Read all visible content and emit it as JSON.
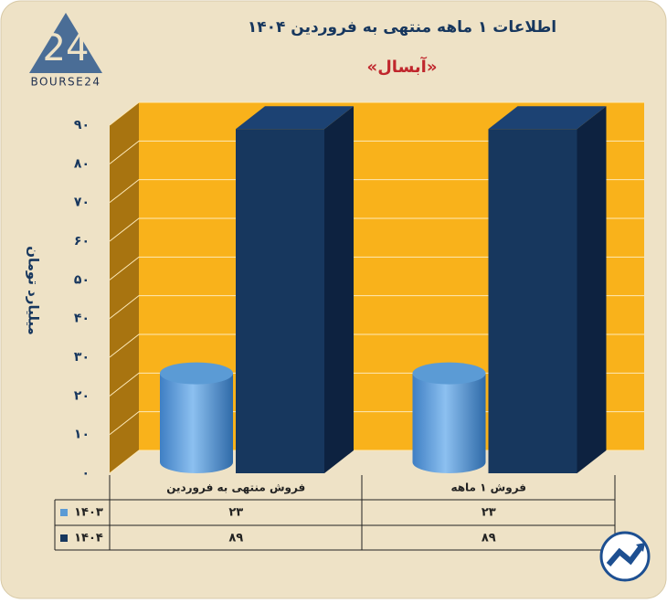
{
  "chart_data": {
    "type": "bar3d",
    "title": "اطلاعات ۱ ماهه منتهی به فروردین ۱۴۰۴",
    "subtitle": "«آبسال»",
    "y_label": "میلیارد تومان",
    "categories": [
      "فروش منتهی به  فروردین",
      "فروش ۱  ماهه"
    ],
    "series": [
      {
        "name": "۱۴۰۳",
        "color": "#5b9bd5",
        "shape": "cylinder",
        "values": [
          23,
          23
        ],
        "value_labels": [
          "۲۳",
          "۲۳"
        ]
      },
      {
        "name": "۱۴۰۴",
        "color": "#17375e",
        "shape": "box",
        "values": [
          89,
          89
        ],
        "value_labels": [
          "۸۹",
          "۸۹"
        ]
      }
    ],
    "ylim": [
      0,
      90
    ],
    "yticks": [
      {
        "value": 0,
        "label": "۰"
      },
      {
        "value": 10,
        "label": "۱۰"
      },
      {
        "value": 20,
        "label": "۲۰"
      },
      {
        "value": 30,
        "label": "۳۰"
      },
      {
        "value": 40,
        "label": "۴۰"
      },
      {
        "value": 50,
        "label": "۵۰"
      },
      {
        "value": 60,
        "label": "۶۰"
      },
      {
        "value": 70,
        "label": "۷۰"
      },
      {
        "value": 80,
        "label": "۸۰"
      },
      {
        "value": 90,
        "label": "۹۰"
      }
    ],
    "grid": true
  },
  "logo": {
    "mark": "24",
    "text": "BOURSE24"
  }
}
